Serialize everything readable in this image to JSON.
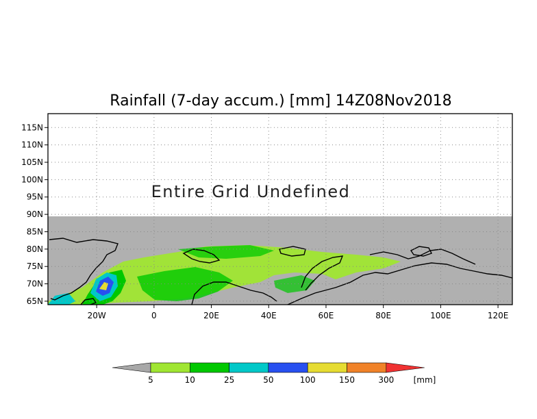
{
  "title": "Rainfall (7-day accum.) [mm] 14Z08Nov2018",
  "map": {
    "lon_range": [
      -37,
      125
    ],
    "lat_range": [
      64,
      119
    ],
    "data_lat_max": 90,
    "undefined_color": "#b0b0b0",
    "undefined_text": "Entire Grid Undefined",
    "lat_ticks": [
      "65N",
      "70N",
      "75N",
      "80N",
      "85N",
      "90N",
      "95N",
      "100N",
      "105N",
      "110N",
      "115N"
    ],
    "lat_values": [
      65,
      70,
      75,
      80,
      85,
      90,
      95,
      100,
      105,
      110,
      115
    ],
    "lon_ticks": [
      "20W",
      "0",
      "20E",
      "40E",
      "60E",
      "80E",
      "100E",
      "120E"
    ],
    "lon_values": [
      -20,
      0,
      20,
      40,
      60,
      80,
      100,
      120
    ],
    "grid": true
  },
  "colorbar": {
    "labels": [
      "5",
      "10",
      "25",
      "50",
      "100",
      "150",
      "300"
    ],
    "colors": [
      "#a8a8a8",
      "#a0e632",
      "#00c800",
      "#00c8c8",
      "#2850f0",
      "#e6dc32",
      "#f08228",
      "#f03232"
    ],
    "unit": "[mm]"
  }
}
